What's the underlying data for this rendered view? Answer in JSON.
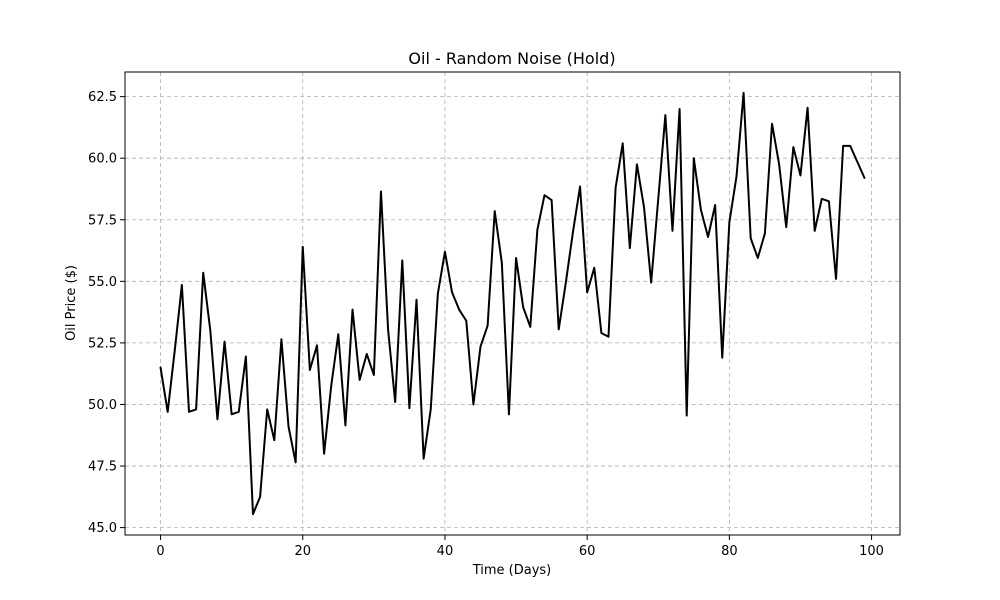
{
  "chart_data": {
    "type": "line",
    "title": "Oil - Random Noise (Hold)",
    "xlabel": "Time (Days)",
    "ylabel": "Oil Price ($)",
    "xlim": [
      -5,
      104
    ],
    "ylim": [
      44.7,
      63.5
    ],
    "xticks": [
      0,
      20,
      40,
      60,
      80,
      100
    ],
    "xtick_labels": [
      "0",
      "20",
      "40",
      "60",
      "80",
      "100"
    ],
    "yticks": [
      45.0,
      47.5,
      50.0,
      52.5,
      55.0,
      57.5,
      60.0,
      62.5
    ],
    "ytick_labels": [
      "45.0",
      "47.5",
      "50.0",
      "52.5",
      "55.0",
      "57.5",
      "60.0",
      "62.5"
    ],
    "grid": true,
    "line_color": "#000000",
    "grid_color": "#b0b0b0",
    "series": [
      {
        "x": [
          0,
          1,
          2,
          3,
          4,
          5,
          6,
          7,
          8,
          9,
          10,
          11,
          12,
          13,
          14,
          15,
          16,
          17,
          18,
          19,
          20,
          21,
          22,
          23,
          24,
          25,
          26,
          27,
          28,
          29,
          30,
          31,
          32,
          33,
          34,
          35,
          36,
          37,
          38,
          39,
          40,
          41,
          42,
          43,
          44,
          45,
          46,
          47,
          48,
          49,
          50,
          51,
          52,
          53,
          54,
          55,
          56,
          57,
          58,
          59,
          60,
          61,
          62,
          63,
          64,
          65,
          66,
          67,
          68,
          69,
          70,
          71,
          72,
          73,
          74,
          75,
          76,
          77,
          78,
          79,
          80,
          81,
          82,
          83,
          84,
          85,
          86,
          87,
          88,
          89,
          90,
          91,
          92,
          93,
          94,
          95,
          96,
          97,
          98,
          99
        ],
        "values": [
          51.5,
          49.7,
          52.2,
          54.85,
          49.7,
          49.8,
          55.35,
          53.0,
          49.4,
          52.55,
          49.6,
          49.7,
          51.95,
          45.55,
          46.25,
          49.8,
          48.55,
          52.65,
          49.1,
          47.65,
          56.4,
          51.4,
          52.4,
          48.0,
          50.75,
          52.85,
          49.15,
          53.85,
          51.0,
          52.05,
          51.2,
          58.65,
          53.05,
          50.1,
          55.85,
          49.85,
          54.25,
          47.8,
          49.8,
          54.5,
          56.2,
          54.55,
          53.85,
          53.4,
          50.0,
          52.35,
          53.2,
          57.85,
          55.75,
          49.6,
          55.95,
          53.95,
          53.15,
          57.1,
          58.5,
          58.3,
          53.05,
          54.95,
          57.0,
          58.85,
          54.55,
          55.55,
          52.9,
          52.75,
          58.8,
          60.6,
          56.35,
          59.75,
          58.0,
          54.95,
          58.35,
          61.75,
          57.05,
          62.0,
          49.55,
          60.0,
          57.9,
          56.8,
          58.1,
          51.9,
          57.4,
          59.25,
          62.65,
          56.75,
          55.95,
          56.95,
          61.4,
          59.75,
          57.2,
          60.45,
          59.3,
          62.05,
          57.05,
          58.35,
          58.25,
          55.1,
          60.5,
          60.5,
          59.85,
          59.2
        ]
      }
    ]
  }
}
